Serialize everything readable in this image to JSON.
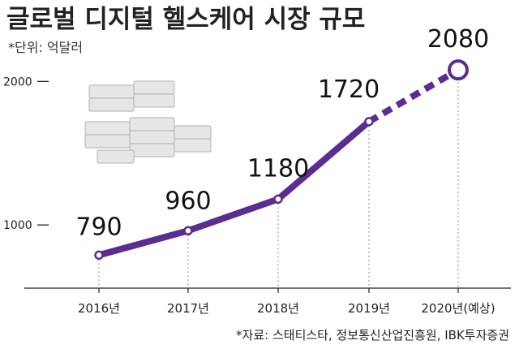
{
  "title": "글로벌 디지털 헬스케어 시장 규모",
  "unit_note": "*단위: 억달러",
  "source": "*자료: 스태티스타, 정보통신산업진흥원, IBK투자증권",
  "chart_data": {
    "type": "line",
    "title": "글로벌 디지털 헬스케어 시장 규모",
    "categories": [
      "2016년",
      "2017년",
      "2018년",
      "2019년",
      "2020년(예상)"
    ],
    "values": [
      790,
      960,
      1180,
      1720,
      2080
    ],
    "data_labels": [
      "790",
      "960",
      "1180",
      "1720",
      "2080"
    ],
    "projected_index": 4,
    "y_ticks": [
      1000,
      2000
    ],
    "y_tick_labels": [
      "1000",
      "2000"
    ],
    "ylim": [
      560,
      2160
    ],
    "grid": false,
    "colors": {
      "line": "#5b2d90",
      "marker_fill": "#ffffff",
      "baseline": "#222222",
      "guide": "#888888"
    }
  }
}
